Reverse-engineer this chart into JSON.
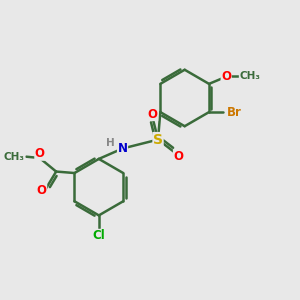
{
  "background_color": "#e8e8e8",
  "line_color": "#3a6b3a",
  "bond_width": 1.8,
  "atom_colors": {
    "O": "#ff0000",
    "N": "#0000cc",
    "S": "#ccaa00",
    "Br": "#cc7700",
    "Cl": "#00aa00",
    "H": "#888888",
    "C": "#3a6b3a"
  },
  "font_size": 8.5,
  "bg": "#e8e8e8"
}
